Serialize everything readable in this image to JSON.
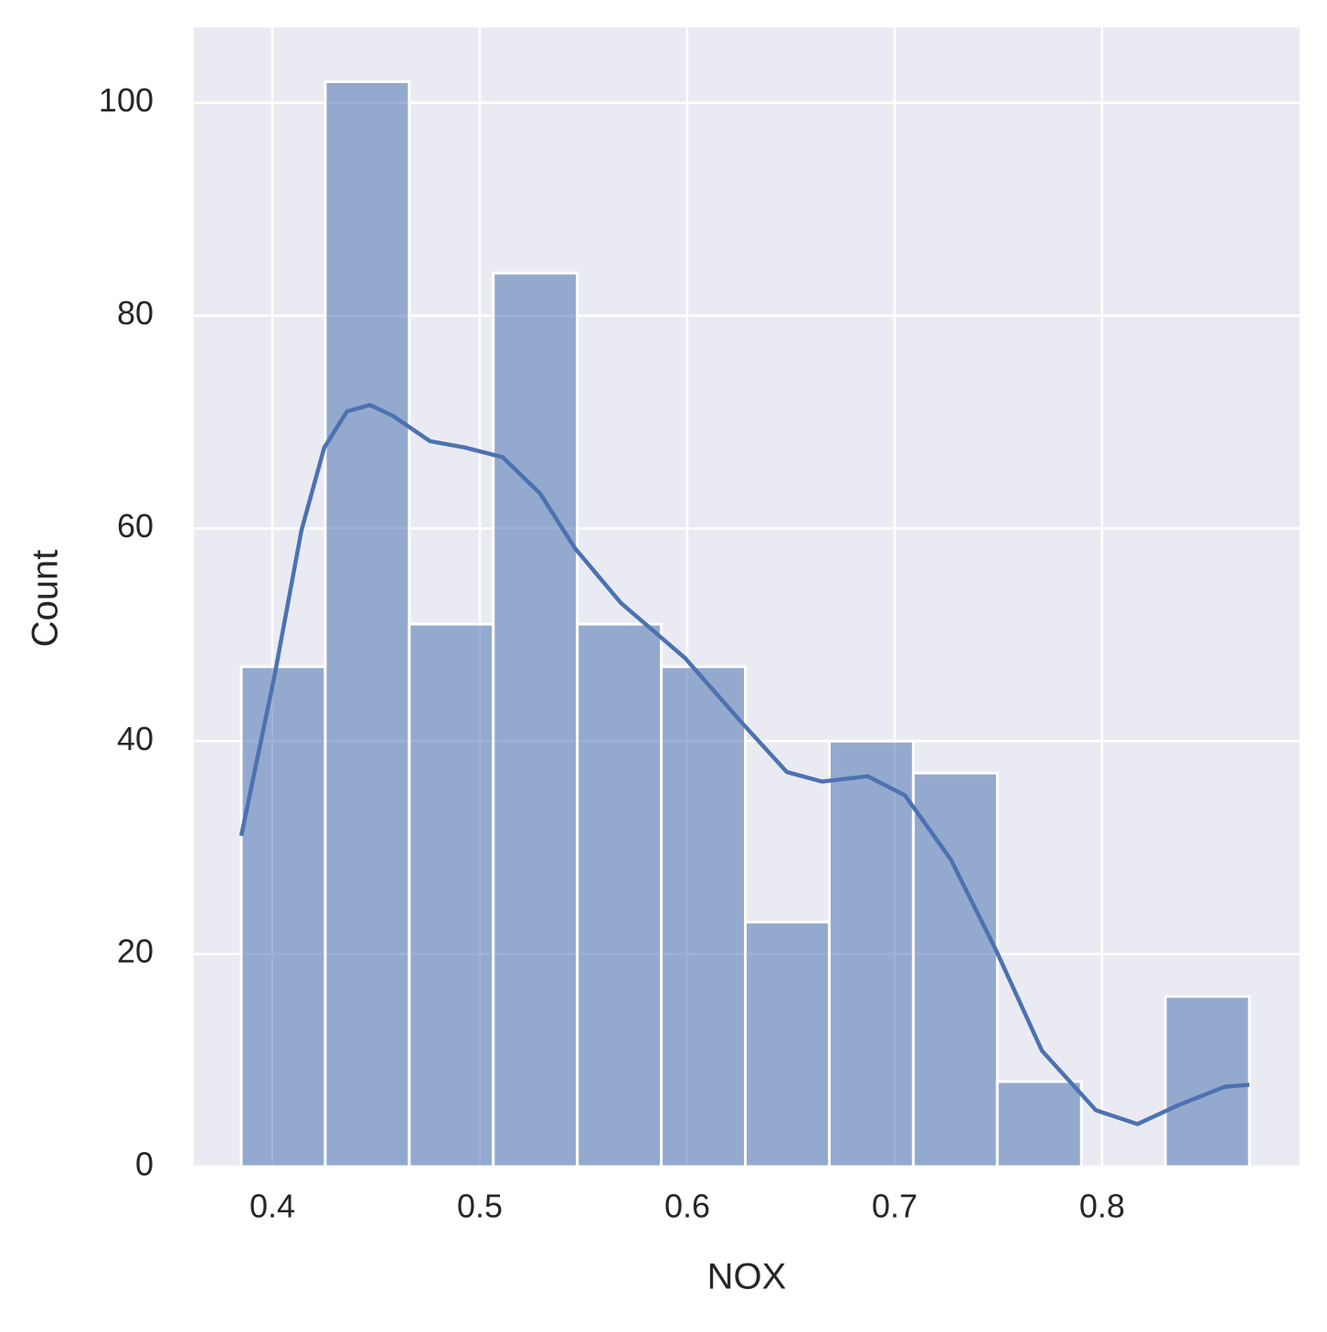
{
  "chart_data": {
    "type": "histogram",
    "x_label": "NOX",
    "y_label": "Count",
    "bins": [
      0.385,
      0.4255,
      0.466,
      0.5065,
      0.547,
      0.5875,
      0.628,
      0.6685,
      0.709,
      0.7495,
      0.79,
      0.8305,
      0.871
    ],
    "values": [
      47,
      102,
      51,
      84,
      51,
      47,
      23,
      40,
      37,
      8,
      0,
      16
    ],
    "color": "#4c72b0",
    "kde": {
      "x": [
        0.385,
        0.401,
        0.414,
        0.425,
        0.436,
        0.447,
        0.458,
        0.476,
        0.493,
        0.511,
        0.529,
        0.546,
        0.568,
        0.599,
        0.626,
        0.648,
        0.665,
        0.687,
        0.705,
        0.727,
        0.749,
        0.771,
        0.797,
        0.817,
        0.837,
        0.859,
        0.871
      ],
      "y": [
        31.1,
        46.1,
        59.8,
        67.6,
        71.0,
        71.6,
        70.6,
        68.2,
        67.6,
        66.7,
        63.3,
        58.1,
        53.0,
        47.8,
        41.8,
        37.1,
        36.2,
        36.7,
        34.9,
        28.9,
        20.3,
        10.9,
        5.3,
        4.0,
        5.8,
        7.5,
        7.7
      ]
    },
    "xlim": [
      0.3621,
      0.8952
    ],
    "ylim": [
      0,
      107.1
    ],
    "xticks": [
      0.4,
      0.5,
      0.6,
      0.7,
      0.8
    ],
    "yticks": [
      0,
      20,
      40,
      60,
      80,
      100
    ],
    "grid": true
  }
}
